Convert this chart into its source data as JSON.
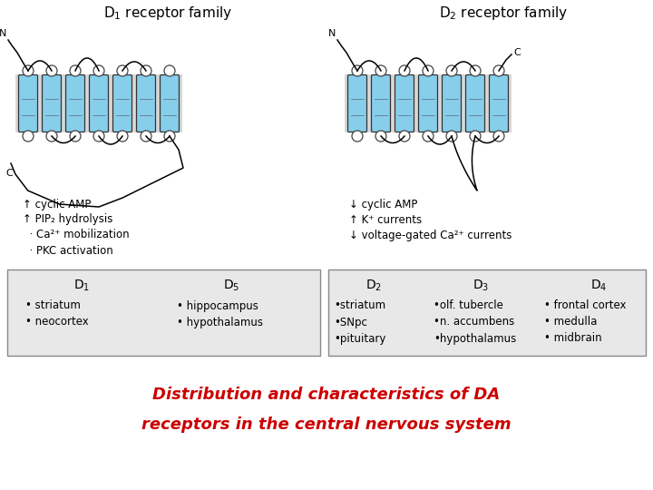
{
  "title_line1": "Distribution and characteristics of DA",
  "title_line2": "receptors in the central nervous system",
  "title_color": "#cc0000",
  "bg_color": "#ffffff",
  "d1_family_title": "D$_1$ receptor family",
  "d2_family_title": "D$_2$ receptor family",
  "d1_effects": [
    "↑ cyclic AMP",
    "↑ PIP₂ hydrolysis",
    "  · Ca²⁺ mobilization",
    "  · PKC activation"
  ],
  "d2_effects": [
    "↓ cyclic AMP",
    "↑ K⁺ currents",
    "↓ voltage-gated Ca²⁺ currents"
  ],
  "table1_headers": [
    "D$_1$",
    "D$_5$"
  ],
  "table1_d1": [
    "• striatum",
    "• neocortex"
  ],
  "table1_d5": [
    "• hippocampus",
    "• hypothalamus"
  ],
  "table2_headers": [
    "D$_2$",
    "D$_3$",
    "D$_4$"
  ],
  "table2_d2": [
    "•striatum",
    "•SNpc",
    "•pituitary"
  ],
  "table2_d3": [
    "•olf. tubercle",
    "•n. accumbens",
    "•hypothalamus"
  ],
  "table2_d4": [
    "• frontal cortex",
    "• medulla",
    "• midbrain"
  ],
  "membrane_color": "#87ceeb",
  "membrane_dark": "#5a9ab5",
  "membrane_bg": "#d8d8d8"
}
